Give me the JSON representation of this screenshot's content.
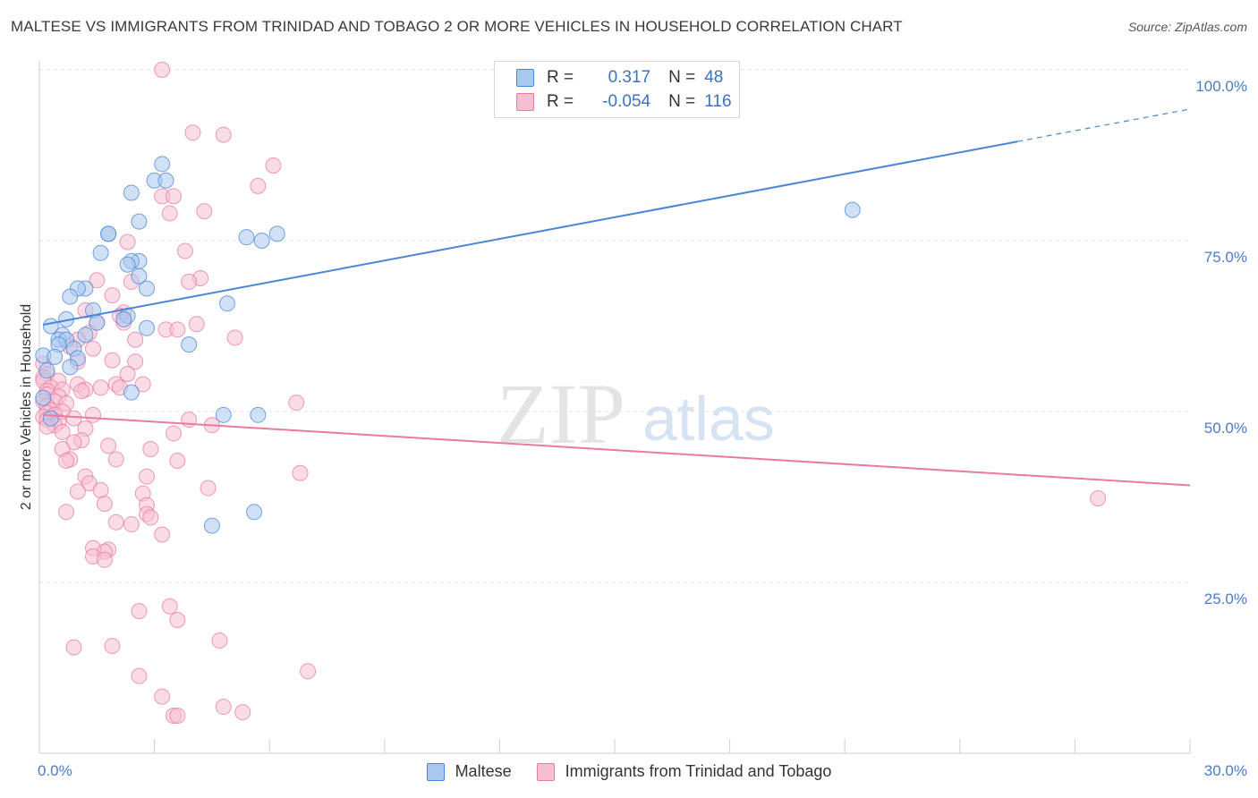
{
  "title": "MALTESE VS IMMIGRANTS FROM TRINIDAD AND TOBAGO 2 OR MORE VEHICLES IN HOUSEHOLD CORRELATION CHART",
  "source": "Source: ZipAtlas.com",
  "watermark": {
    "zip": "ZIP",
    "atlas": "atlas"
  },
  "colors": {
    "blue": "#4a85d8",
    "blue_fill": "#a9c8ef",
    "pink": "#e97aa0",
    "pink_fill": "#f5bfd1",
    "tick_text": "#4a7cc7"
  },
  "legend": {
    "rows": [
      {
        "r_label": "R =",
        "r_value": "0.317",
        "n_label": "N =",
        "n_value": "48"
      },
      {
        "r_label": "R =",
        "r_value": "-0.054",
        "n_label": "N =",
        "n_value": "116"
      }
    ]
  },
  "bottom_legend": [
    "Maltese",
    "Immigrants from Trinidad and Tobago"
  ],
  "chart_data": {
    "type": "scatter",
    "xlabel": "",
    "ylabel": "2 or more Vehicles in Household",
    "x_tick_labels": {
      "min": "0.0%",
      "max": "30.0%"
    },
    "y_tick_labels": [
      "100.0%",
      "75.0%",
      "50.0%",
      "25.0%"
    ],
    "xlim": [
      0,
      30
    ],
    "ylim": [
      0,
      100
    ],
    "grid": true,
    "legend_position": "top-center",
    "series": [
      {
        "name": "Maltese",
        "color": "#4a85d8",
        "trend": {
          "x": [
            0.1,
            25.5
          ],
          "y": [
            62.7,
            89.5
          ],
          "dashed_to_x": 30
        },
        "points": [
          [
            14.0,
            100.0
          ],
          [
            3.2,
            86.2
          ],
          [
            3.0,
            83.8
          ],
          [
            3.3,
            83.8
          ],
          [
            2.4,
            82.0
          ],
          [
            2.6,
            77.8
          ],
          [
            6.2,
            76.0
          ],
          [
            5.4,
            75.5
          ],
          [
            5.8,
            75.0
          ],
          [
            1.8,
            76.0
          ],
          [
            1.8,
            76.0
          ],
          [
            1.6,
            73.2
          ],
          [
            2.6,
            72.0
          ],
          [
            2.4,
            72.0
          ],
          [
            2.3,
            71.5
          ],
          [
            2.6,
            69.8
          ],
          [
            2.8,
            68.0
          ],
          [
            1.2,
            68.0
          ],
          [
            1.0,
            68.0
          ],
          [
            0.8,
            66.8
          ],
          [
            4.9,
            65.8
          ],
          [
            1.4,
            64.8
          ],
          [
            2.3,
            64.0
          ],
          [
            2.2,
            63.5
          ],
          [
            0.7,
            63.5
          ],
          [
            1.5,
            63.0
          ],
          [
            2.8,
            62.2
          ],
          [
            0.3,
            62.5
          ],
          [
            0.6,
            61.2
          ],
          [
            1.2,
            61.2
          ],
          [
            0.5,
            60.5
          ],
          [
            0.7,
            60.5
          ],
          [
            0.5,
            59.8
          ],
          [
            3.9,
            59.8
          ],
          [
            0.9,
            59.2
          ],
          [
            0.1,
            58.2
          ],
          [
            0.4,
            58.0
          ],
          [
            1.0,
            57.8
          ],
          [
            0.8,
            56.5
          ],
          [
            0.2,
            56.0
          ],
          [
            2.4,
            52.8
          ],
          [
            0.1,
            52.0
          ],
          [
            4.8,
            49.5
          ],
          [
            5.7,
            49.5
          ],
          [
            0.3,
            49.0
          ],
          [
            5.6,
            35.3
          ],
          [
            4.5,
            33.3
          ],
          [
            21.2,
            79.5
          ]
        ]
      },
      {
        "name": "Immigrants from Trinidad and Tobago",
        "color": "#e97aa0",
        "trend": {
          "x": [
            0.1,
            30
          ],
          "y": [
            49.5,
            39.2
          ]
        },
        "points": [
          [
            3.2,
            100.0
          ],
          [
            4.0,
            90.8
          ],
          [
            4.8,
            90.5
          ],
          [
            6.1,
            86.0
          ],
          [
            5.7,
            83.0
          ],
          [
            3.2,
            81.5
          ],
          [
            3.5,
            81.5
          ],
          [
            3.4,
            79.0
          ],
          [
            4.3,
            79.3
          ],
          [
            2.3,
            74.8
          ],
          [
            3.8,
            73.5
          ],
          [
            1.5,
            69.2
          ],
          [
            4.2,
            69.5
          ],
          [
            3.9,
            69.0
          ],
          [
            2.4,
            69.0
          ],
          [
            1.9,
            67.0
          ],
          [
            1.2,
            64.8
          ],
          [
            2.2,
            64.5
          ],
          [
            2.1,
            64.0
          ],
          [
            1.5,
            63.0
          ],
          [
            2.2,
            63.0
          ],
          [
            4.1,
            62.8
          ],
          [
            3.3,
            62.0
          ],
          [
            3.6,
            62.0
          ],
          [
            1.3,
            61.5
          ],
          [
            5.1,
            60.8
          ],
          [
            2.5,
            60.5
          ],
          [
            1.0,
            60.5
          ],
          [
            0.8,
            59.5
          ],
          [
            1.4,
            59.2
          ],
          [
            1.9,
            57.5
          ],
          [
            1.0,
            57.3
          ],
          [
            2.5,
            57.3
          ],
          [
            0.1,
            57.0
          ],
          [
            0.2,
            55.5
          ],
          [
            2.3,
            55.5
          ],
          [
            0.1,
            55.0
          ],
          [
            0.5,
            54.5
          ],
          [
            0.1,
            54.5
          ],
          [
            2.7,
            54.0
          ],
          [
            1.0,
            54.0
          ],
          [
            2.0,
            54.0
          ],
          [
            1.6,
            53.5
          ],
          [
            2.1,
            53.5
          ],
          [
            1.2,
            53.2
          ],
          [
            0.3,
            53.5
          ],
          [
            0.6,
            53.2
          ],
          [
            0.2,
            53.0
          ],
          [
            1.1,
            53.0
          ],
          [
            0.2,
            52.5
          ],
          [
            0.5,
            52.2
          ],
          [
            0.4,
            51.5
          ],
          [
            0.1,
            51.5
          ],
          [
            0.7,
            51.2
          ],
          [
            0.2,
            50.8
          ],
          [
            6.7,
            51.3
          ],
          [
            0.3,
            50.2
          ],
          [
            0.2,
            49.8
          ],
          [
            0.6,
            50.0
          ],
          [
            1.4,
            49.5
          ],
          [
            0.4,
            49.5
          ],
          [
            0.1,
            49.2
          ],
          [
            0.9,
            49.0
          ],
          [
            0.2,
            48.8
          ],
          [
            0.5,
            48.5
          ],
          [
            3.9,
            48.8
          ],
          [
            0.4,
            48.0
          ],
          [
            0.2,
            47.8
          ],
          [
            4.5,
            48.0
          ],
          [
            1.2,
            47.5
          ],
          [
            0.6,
            47.0
          ],
          [
            3.5,
            46.8
          ],
          [
            1.1,
            45.8
          ],
          [
            0.9,
            45.5
          ],
          [
            1.8,
            45.0
          ],
          [
            0.6,
            44.5
          ],
          [
            2.9,
            44.5
          ],
          [
            0.8,
            43.0
          ],
          [
            2.0,
            43.0
          ],
          [
            0.7,
            42.8
          ],
          [
            3.6,
            42.8
          ],
          [
            6.8,
            41.0
          ],
          [
            1.2,
            40.5
          ],
          [
            2.8,
            40.5
          ],
          [
            1.3,
            39.5
          ],
          [
            4.4,
            38.8
          ],
          [
            1.6,
            38.5
          ],
          [
            1.0,
            38.3
          ],
          [
            2.7,
            38.0
          ],
          [
            1.7,
            36.5
          ],
          [
            2.8,
            36.3
          ],
          [
            0.7,
            35.3
          ],
          [
            2.8,
            35.0
          ],
          [
            2.9,
            34.5
          ],
          [
            2.0,
            33.8
          ],
          [
            2.4,
            33.5
          ],
          [
            3.2,
            32.0
          ],
          [
            1.4,
            30.0
          ],
          [
            1.8,
            29.8
          ],
          [
            1.7,
            29.5
          ],
          [
            1.4,
            28.8
          ],
          [
            1.7,
            28.3
          ],
          [
            27.6,
            37.3
          ],
          [
            3.4,
            21.5
          ],
          [
            2.6,
            20.8
          ],
          [
            3.6,
            19.5
          ],
          [
            0.9,
            15.5
          ],
          [
            1.9,
            15.7
          ],
          [
            4.7,
            16.5
          ],
          [
            7.0,
            12.0
          ],
          [
            2.6,
            11.3
          ],
          [
            3.2,
            8.3
          ],
          [
            4.8,
            6.8
          ],
          [
            5.3,
            6.0
          ],
          [
            3.5,
            5.5
          ],
          [
            3.6,
            5.5
          ]
        ]
      }
    ]
  }
}
